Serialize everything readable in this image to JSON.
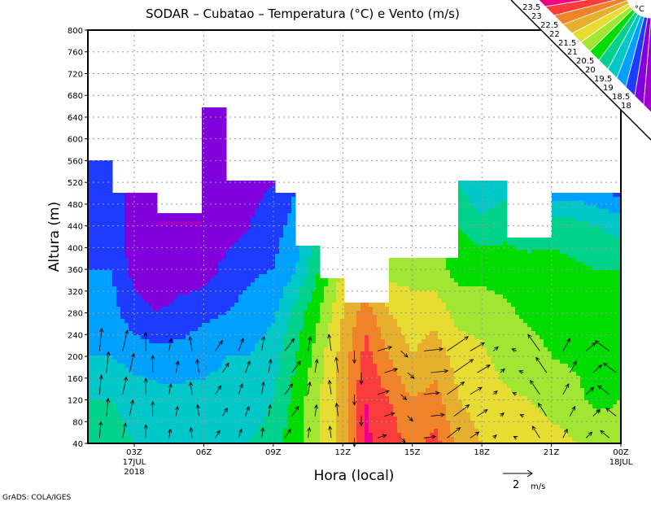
{
  "chart_data": {
    "type": "heatmap",
    "title": "SODAR – Cubatao – Temperatura (°C) e Vento (m/s)",
    "xlabel": "Hora (local)",
    "ylabel": "Altura (m)",
    "xlim": [
      1,
      24
    ],
    "ylim": [
      40,
      800
    ],
    "grid": true,
    "x_ticks": [
      {
        "value": 3,
        "label": "03Z",
        "sub1": "17JUL",
        "sub2": "2018"
      },
      {
        "value": 6,
        "label": "06Z"
      },
      {
        "value": 9,
        "label": "09Z"
      },
      {
        "value": 12,
        "label": "12Z"
      },
      {
        "value": 15,
        "label": "15Z"
      },
      {
        "value": 18,
        "label": "18Z"
      },
      {
        "value": 21,
        "label": "21Z"
      },
      {
        "value": 24,
        "label": "00Z",
        "sub1": "18JUL"
      }
    ],
    "y_ticks": [
      "40",
      "80",
      "120",
      "160",
      "200",
      "240",
      "280",
      "320",
      "360",
      "400",
      "440",
      "480",
      "520",
      "560",
      "600",
      "640",
      "680",
      "720",
      "760",
      "800"
    ],
    "heights": [
      40,
      120,
      200,
      280,
      360,
      440,
      520,
      600
    ],
    "hours": [
      1,
      2,
      3,
      4,
      5,
      6,
      7,
      8,
      9,
      10,
      11,
      12,
      13,
      14,
      15,
      16,
      17,
      18,
      19,
      20,
      21,
      22,
      23,
      24
    ],
    "temperature": [
      [
        20.3,
        20.0,
        19.5,
        19.2,
        19.0,
        19.0,
        19.0,
        19.0
      ],
      [
        20.2,
        20.0,
        19.5,
        19.2,
        19.0,
        18.8,
        18.7,
        18.7
      ],
      [
        20.0,
        19.8,
        19.3,
        18.7,
        18.3,
        18.2,
        18.3,
        18.3
      ],
      [
        20.0,
        19.7,
        19.2,
        18.5,
        18.0,
        18.0,
        18.0,
        18.0
      ],
      [
        20.0,
        19.7,
        19.2,
        18.7,
        18.2,
        18.0,
        18.0,
        18.0
      ],
      [
        20.0,
        19.7,
        19.3,
        18.9,
        18.2,
        18.0,
        18.0,
        18.0
      ],
      [
        20.0,
        19.7,
        19.5,
        19.0,
        18.7,
        18.2,
        18.0,
        18.0
      ],
      [
        20.0,
        19.7,
        19.5,
        19.2,
        18.9,
        18.5,
        18.3,
        18.3
      ],
      [
        20.3,
        20.0,
        19.8,
        19.4,
        19.0,
        18.8,
        18.5,
        18.5
      ],
      [
        20.8,
        20.7,
        20.5,
        20.2,
        19.5,
        19.2,
        19.0,
        19.0
      ],
      [
        21.5,
        21.5,
        21.3,
        21.0,
        20.5,
        20.3,
        20.0,
        20.0
      ],
      [
        22.3,
        22.3,
        22.2,
        22.0,
        21.6,
        21.3,
        21.0,
        21.0
      ],
      [
        23.6,
        23.5,
        23.2,
        22.8,
        22.0,
        21.5,
        21.0,
        21.0
      ],
      [
        23.3,
        23.0,
        22.5,
        22.0,
        21.3,
        21.0,
        21.0,
        21.0
      ],
      [
        22.8,
        22.5,
        22.0,
        21.7,
        21.3,
        21.0,
        21.0,
        21.0
      ],
      [
        23.2,
        22.7,
        22.3,
        21.8,
        21.2,
        21.0,
        21.0,
        21.0
      ],
      [
        22.3,
        22.0,
        21.8,
        21.3,
        20.8,
        20.5,
        20.0,
        20.0
      ],
      [
        22.0,
        21.8,
        21.6,
        21.3,
        20.8,
        20.2,
        19.5,
        19.5
      ],
      [
        21.8,
        21.6,
        21.3,
        21.1,
        20.8,
        20.3,
        19.8,
        19.8
      ],
      [
        21.8,
        21.5,
        21.2,
        20.9,
        20.7,
        20.2,
        19.5,
        19.5
      ],
      [
        21.7,
        21.3,
        21.0,
        20.8,
        20.7,
        20.3,
        19.0,
        19.0
      ],
      [
        21.5,
        21.2,
        20.9,
        20.8,
        20.6,
        20.2,
        19.0,
        19.0
      ],
      [
        21.5,
        20.8,
        20.7,
        20.7,
        20.5,
        20.0,
        18.8,
        18.8
      ],
      [
        21.5,
        21.0,
        20.7,
        20.8,
        20.5,
        19.8,
        18.6,
        18.6
      ]
    ],
    "data_top": [
      {
        "from": 1,
        "to": 2,
        "top": 560
      },
      {
        "from": 2,
        "to": 4,
        "top": 500
      },
      {
        "from": 4,
        "to": 6,
        "top": 460
      },
      {
        "from": 6,
        "to": 7,
        "top": 660
      },
      {
        "from": 7,
        "to": 9,
        "top": 520
      },
      {
        "from": 9,
        "to": 10,
        "top": 500
      },
      {
        "from": 10,
        "to": 11,
        "top": 400
      },
      {
        "from": 11,
        "to": 12,
        "top": 340
      },
      {
        "from": 12,
        "to": 14,
        "top": 300
      },
      {
        "from": 14,
        "to": 17,
        "top": 380
      },
      {
        "from": 17,
        "to": 19,
        "top": 520
      },
      {
        "from": 19,
        "to": 21,
        "top": 420
      },
      {
        "from": 21,
        "to": 24,
        "top": 500
      }
    ],
    "levels": [
      "18",
      "18.5",
      "19",
      "19.5",
      "20",
      "20.5",
      "21",
      "21.5",
      "22",
      "22.5",
      "23",
      "23.5"
    ],
    "colors": [
      "#a000c8",
      "#8200dc",
      "#1e3cff",
      "#00a0ff",
      "#00c8c8",
      "#00d28c",
      "#00dc00",
      "#a0e632",
      "#e6dc32",
      "#e6af2d",
      "#f08228",
      "#fa3c3c",
      "#f00082"
    ],
    "legend_unit": "°C",
    "wind_heights": [
      50,
      90,
      130,
      170,
      210
    ],
    "wind_u": [
      -0.6,
      0.1,
      0.2,
      0.0,
      0.1,
      -0.1,
      0.3,
      0.2,
      0.1,
      0.4,
      0.1,
      -0.1,
      0.0,
      0.6,
      0.3,
      0.8,
      0.9,
      0.6,
      0.2,
      -0.2,
      -0.5,
      0.3,
      0.4,
      -0.6
    ],
    "wind_v": [
      0.9,
      1.1,
      1.0,
      0.9,
      0.6,
      0.7,
      0.5,
      0.6,
      0.7,
      0.6,
      0.7,
      0.8,
      -0.6,
      0.2,
      -0.3,
      0.1,
      0.7,
      0.4,
      0.2,
      0.1,
      0.8,
      0.6,
      0.4,
      0.5
    ],
    "wind_reference": {
      "value": 2,
      "label": "2",
      "unit": "m/s"
    }
  },
  "footer": "GrADS: COLA/IGES"
}
